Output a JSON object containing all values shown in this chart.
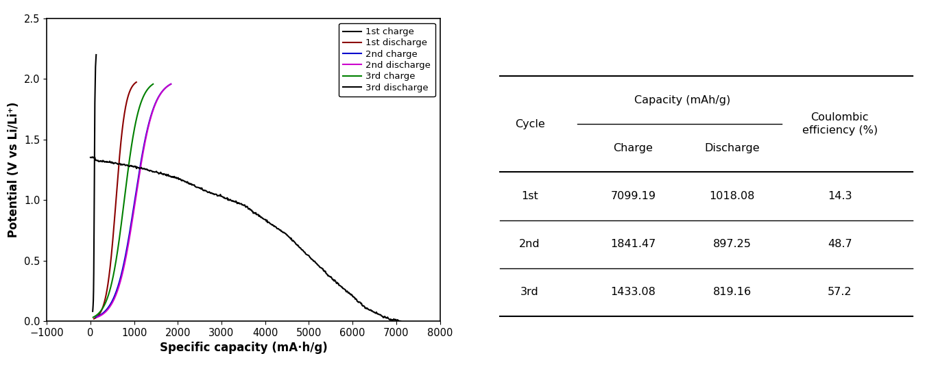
{
  "xlabel": "Specific capacity (mA·h/g)",
  "ylabel": "Potential (V vs Li/Li⁺)",
  "xlim": [
    -1000,
    8000
  ],
  "ylim": [
    0,
    2.5
  ],
  "xticks": [
    -1000,
    0,
    1000,
    2000,
    3000,
    4000,
    5000,
    6000,
    7000,
    8000
  ],
  "yticks": [
    0.0,
    0.5,
    1.0,
    1.5,
    2.0,
    2.5
  ],
  "legend_entries": [
    "1st charge",
    "1st discharge",
    "2nd charge",
    "2nd discharge",
    "3rd charge",
    "3rd discharge"
  ],
  "legend_colors": [
    "#000000",
    "#8B0000",
    "#0000CC",
    "#CC00CC",
    "#008000",
    "#000000"
  ],
  "background_color": "#ffffff",
  "table_data": [
    [
      "1st",
      "7099.19",
      "1018.08",
      "14.3"
    ],
    [
      "2nd",
      "1841.47",
      "897.25",
      "48.7"
    ],
    [
      "3rd",
      "1433.08",
      "819.16",
      "57.2"
    ]
  ]
}
